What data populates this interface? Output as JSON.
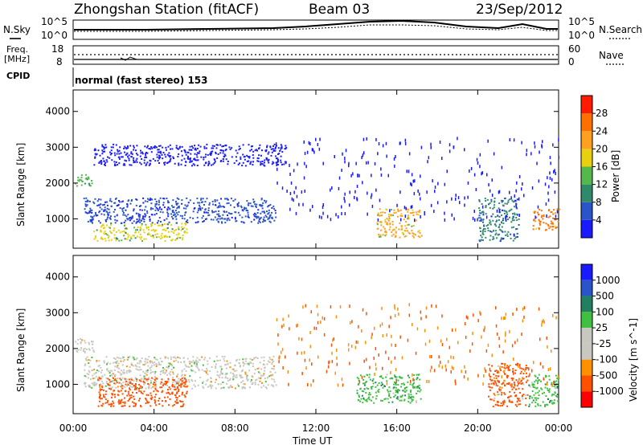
{
  "header": {
    "station": "Zhongshan Station (fitACF)",
    "beam": "Beam 03",
    "date": "23/Sep/2012"
  },
  "noise_panel": {
    "left_label": "N.Sky",
    "right_label": "N.Search",
    "left_ticks": [
      "10^5",
      "10^0"
    ],
    "right_ticks": [
      "10^5",
      "10^0"
    ]
  },
  "freq_panel": {
    "left_label_1": "Freq.",
    "left_label_2": "[MHz]",
    "right_label": "Nave",
    "left_ticks": [
      "18",
      "8"
    ],
    "right_ticks": [
      "60",
      "0"
    ]
  },
  "cpid": {
    "label": "CPID",
    "value": "normal (fast stereo) 153"
  },
  "colors": {
    "power_scale": [
      "#1a1aff",
      "#2a55c8",
      "#2f8a6a",
      "#55b84a",
      "#e8d010",
      "#ffa020",
      "#ff7000",
      "#ff1a00"
    ],
    "velocity_scale": [
      "#ff0000",
      "#ff5000",
      "#ff9000",
      "#c8c8c0",
      "#c8c8c0",
      "#40c040",
      "#208060",
      "#2a55c8",
      "#1a1aff"
    ]
  },
  "chart_data": [
    {
      "type": "heatmap",
      "name": "power",
      "xlabel": "",
      "ylabel": "Slant Range [km]",
      "x_ticks": [
        "00:00",
        "04:00",
        "08:00",
        "12:00",
        "16:00",
        "20:00",
        "00:00"
      ],
      "xlim_hours": [
        0,
        24
      ],
      "y_ticks": [
        1000,
        2000,
        3000,
        4000
      ],
      "ylim_km": [
        180,
        4600
      ],
      "colorbar": {
        "label": "Power [dB]",
        "ticks": [
          "4",
          "8",
          "12",
          "16",
          "20",
          "24",
          "28"
        ],
        "range": [
          0,
          30
        ]
      },
      "echo_regions": [
        {
          "t0": 0.0,
          "t1": 0.9,
          "r0": 1900,
          "r1": 2250,
          "level": 16
        },
        {
          "t0": 0.5,
          "t1": 10.0,
          "r0": 900,
          "r1": 1600,
          "level": 8
        },
        {
          "t0": 1.0,
          "t1": 5.6,
          "r0": 400,
          "r1": 900,
          "level": 20
        },
        {
          "t0": 1.0,
          "t1": 10.5,
          "r0": 2500,
          "r1": 3100,
          "level": 4
        },
        {
          "t0": 15.0,
          "t1": 17.2,
          "r0": 500,
          "r1": 1300,
          "level": 24
        },
        {
          "t0": 20.0,
          "t1": 22.0,
          "r0": 400,
          "r1": 1600,
          "level": 12
        },
        {
          "t0": 22.7,
          "t1": 24.0,
          "r0": 700,
          "r1": 1300,
          "level": 28
        }
      ]
    },
    {
      "type": "heatmap",
      "name": "velocity",
      "xlabel": "Time UT",
      "ylabel": "Slant Range [km]",
      "x_ticks": [
        "00:00",
        "04:00",
        "08:00",
        "12:00",
        "16:00",
        "20:00",
        "00:00"
      ],
      "xlim_hours": [
        0,
        24
      ],
      "y_ticks": [
        1000,
        2000,
        3000,
        4000
      ],
      "ylim_km": [
        180,
        4600
      ],
      "colorbar": {
        "label": "Velocity [m s^-1]",
        "ticks": [
          "1000",
          "500",
          "100",
          "25",
          "-25",
          "-100",
          "-500",
          "-1000"
        ]
      },
      "echo_regions": [
        {
          "t0": 0.0,
          "t1": 1.0,
          "r0": 1900,
          "r1": 2300,
          "level": 0
        },
        {
          "t0": 0.5,
          "t1": 10.0,
          "r0": 900,
          "r1": 1800,
          "level": 0
        },
        {
          "t0": 1.2,
          "t1": 5.6,
          "r0": 400,
          "r1": 1200,
          "level": -200
        },
        {
          "t0": 14.0,
          "t1": 17.2,
          "r0": 500,
          "r1": 1300,
          "level": 100
        },
        {
          "t0": 20.5,
          "t1": 22.5,
          "r0": 400,
          "r1": 1600,
          "level": -100
        },
        {
          "t0": 22.5,
          "t1": 24.0,
          "r0": 400,
          "r1": 1300,
          "level": 100
        }
      ]
    }
  ]
}
